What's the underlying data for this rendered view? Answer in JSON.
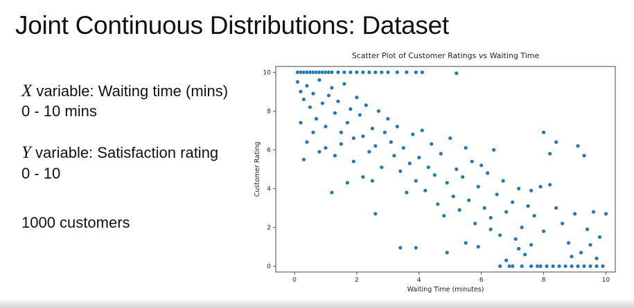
{
  "slide": {
    "title": "Joint Continuous Distributions: Dataset",
    "x_symbol": "X",
    "x_desc": " variable: Waiting time (mins)",
    "x_range": "0 - 10 mins",
    "y_symbol": "Y",
    "y_desc": " variable: Satisfaction rating",
    "y_range": "0 - 10",
    "count": "1000 customers"
  },
  "chart_data": {
    "type": "scatter",
    "title": "Scatter Plot of Customer Ratings vs Waiting Time",
    "xlabel": "Waiting Time (minutes)",
    "ylabel": "Customer Rating",
    "xlim": [
      -0.6,
      10.3
    ],
    "ylim": [
      -0.3,
      10.3
    ],
    "xticks": [
      0,
      2,
      4,
      6,
      8,
      10
    ],
    "yticks": [
      0,
      2,
      4,
      6,
      8,
      10
    ],
    "color": "#1f77b4",
    "grid": false,
    "approx_n_points": 1000,
    "trend": "negative linear, rating ≈ 10 − waiting time, clipped to [0, 10]",
    "points": [
      [
        0.1,
        10
      ],
      [
        0.2,
        10
      ],
      [
        0.3,
        10
      ],
      [
        0.4,
        10
      ],
      [
        0.5,
        10
      ],
      [
        0.6,
        10
      ],
      [
        0.7,
        10
      ],
      [
        0.8,
        10
      ],
      [
        0.9,
        10
      ],
      [
        1.0,
        10
      ],
      [
        1.1,
        10
      ],
      [
        1.2,
        10
      ],
      [
        1.4,
        10
      ],
      [
        1.6,
        10
      ],
      [
        1.8,
        10
      ],
      [
        2.0,
        10
      ],
      [
        2.2,
        10
      ],
      [
        2.4,
        10
      ],
      [
        2.6,
        10
      ],
      [
        2.8,
        10
      ],
      [
        3.0,
        10
      ],
      [
        3.3,
        10
      ],
      [
        3.6,
        10
      ],
      [
        3.9,
        10
      ],
      [
        4.1,
        10
      ],
      [
        5.2,
        9.95
      ],
      [
        0.1,
        9.5
      ],
      [
        0.2,
        9.0
      ],
      [
        0.3,
        8.6
      ],
      [
        0.4,
        9.3
      ],
      [
        0.5,
        8.2
      ],
      [
        0.6,
        8.9
      ],
      [
        0.7,
        7.6
      ],
      [
        0.8,
        9.6
      ],
      [
        0.9,
        8.4
      ],
      [
        1.0,
        7.2
      ],
      [
        1.1,
        8.8
      ],
      [
        1.2,
        9.2
      ],
      [
        1.3,
        7.9
      ],
      [
        1.4,
        8.5
      ],
      [
        1.5,
        6.9
      ],
      [
        1.6,
        9.4
      ],
      [
        1.7,
        7.4
      ],
      [
        1.8,
        8.1
      ],
      [
        1.9,
        6.6
      ],
      [
        2.0,
        8.7
      ],
      [
        0.2,
        7.4
      ],
      [
        0.3,
        5.5
      ],
      [
        0.4,
        6.4
      ],
      [
        0.6,
        6.9
      ],
      [
        0.8,
        5.9
      ],
      [
        1.0,
        6.1
      ],
      [
        1.2,
        3.8
      ],
      [
        1.3,
        5.7
      ],
      [
        1.5,
        6.3
      ],
      [
        1.7,
        4.3
      ],
      [
        1.9,
        5.4
      ],
      [
        2.1,
        7.8
      ],
      [
        2.2,
        6.7
      ],
      [
        2.3,
        8.3
      ],
      [
        2.4,
        5.9
      ],
      [
        2.5,
        7.1
      ],
      [
        2.6,
        6.2
      ],
      [
        2.7,
        8.0
      ],
      [
        2.8,
        5.1
      ],
      [
        2.9,
        6.9
      ],
      [
        2.2,
        4.6
      ],
      [
        2.5,
        4.4
      ],
      [
        2.6,
        2.7
      ],
      [
        3.0,
        7.6
      ],
      [
        3.1,
        6.4
      ],
      [
        3.2,
        5.7
      ],
      [
        3.3,
        7.2
      ],
      [
        3.4,
        4.9
      ],
      [
        3.5,
        6.1
      ],
      [
        3.6,
        3.8
      ],
      [
        3.7,
        5.3
      ],
      [
        3.8,
        6.8
      ],
      [
        3.9,
        4.4
      ],
      [
        4.0,
        5.6
      ],
      [
        4.1,
        7.0
      ],
      [
        4.2,
        3.9
      ],
      [
        4.3,
        5.1
      ],
      [
        4.4,
        6.3
      ],
      [
        4.5,
        4.7
      ],
      [
        4.6,
        3.2
      ],
      [
        3.4,
        0.95
      ],
      [
        3.9,
        0.95
      ],
      [
        4.7,
        5.8
      ],
      [
        4.8,
        2.6
      ],
      [
        4.9,
        4.3
      ],
      [
        5.0,
        6.6
      ],
      [
        5.1,
        3.6
      ],
      [
        5.2,
        5.0
      ],
      [
        5.3,
        2.9
      ],
      [
        5.4,
        4.6
      ],
      [
        5.5,
        6.1
      ],
      [
        5.6,
        3.4
      ],
      [
        5.7,
        5.4
      ],
      [
        5.8,
        2.2
      ],
      [
        5.9,
        4.1
      ],
      [
        6.0,
        5.2
      ],
      [
        6.1,
        3.0
      ],
      [
        6.2,
        4.8
      ],
      [
        6.3,
        2.5
      ],
      [
        6.4,
        6.0
      ],
      [
        4.9,
        0.7
      ],
      [
        5.5,
        1.2
      ],
      [
        6.5,
        3.7
      ],
      [
        6.6,
        1.6
      ],
      [
        6.7,
        4.4
      ],
      [
        6.8,
        2.8
      ],
      [
        6.9,
        0.0
      ],
      [
        7.0,
        3.3
      ],
      [
        7.1,
        1.4
      ],
      [
        7.2,
        4.0
      ],
      [
        7.3,
        2.0
      ],
      [
        7.4,
        0.6
      ],
      [
        7.5,
        3.1
      ],
      [
        7.6,
        1.1
      ],
      [
        7.7,
        2.6
      ],
      [
        7.8,
        0.0
      ],
      [
        7.9,
        4.1
      ],
      [
        8.0,
        1.8
      ],
      [
        8.0,
        6.9
      ],
      [
        8.2,
        5.8
      ],
      [
        6.6,
        0.0
      ],
      [
        6.8,
        0.3
      ],
      [
        7.0,
        0.0
      ],
      [
        7.3,
        0.0
      ],
      [
        7.6,
        0.0
      ],
      [
        7.9,
        0.0
      ],
      [
        8.1,
        0.0
      ],
      [
        8.3,
        0.0
      ],
      [
        8.5,
        0.0
      ],
      [
        8.7,
        0.0
      ],
      [
        8.9,
        0.0
      ],
      [
        9.1,
        0.0
      ],
      [
        9.3,
        0.0
      ],
      [
        9.5,
        0.0
      ],
      [
        9.7,
        0.0
      ],
      [
        9.9,
        0.0
      ],
      [
        8.4,
        3.0
      ],
      [
        8.6,
        2.2
      ],
      [
        8.8,
        1.2
      ],
      [
        9.0,
        2.7
      ],
      [
        9.2,
        0.7
      ],
      [
        9.4,
        1.9
      ],
      [
        9.6,
        2.8
      ],
      [
        9.8,
        1.5
      ],
      [
        10.0,
        2.7
      ],
      [
        9.1,
        6.2
      ],
      [
        9.3,
        5.7
      ],
      [
        8.4,
        6.4
      ],
      [
        7.6,
        3.9
      ],
      [
        8.2,
        4.2
      ],
      [
        9.7,
        0.4
      ],
      [
        9.5,
        1.1
      ],
      [
        8.9,
        0.5
      ],
      [
        7.2,
        0.9
      ],
      [
        6.3,
        1.9
      ],
      [
        5.9,
        1.0
      ]
    ]
  }
}
